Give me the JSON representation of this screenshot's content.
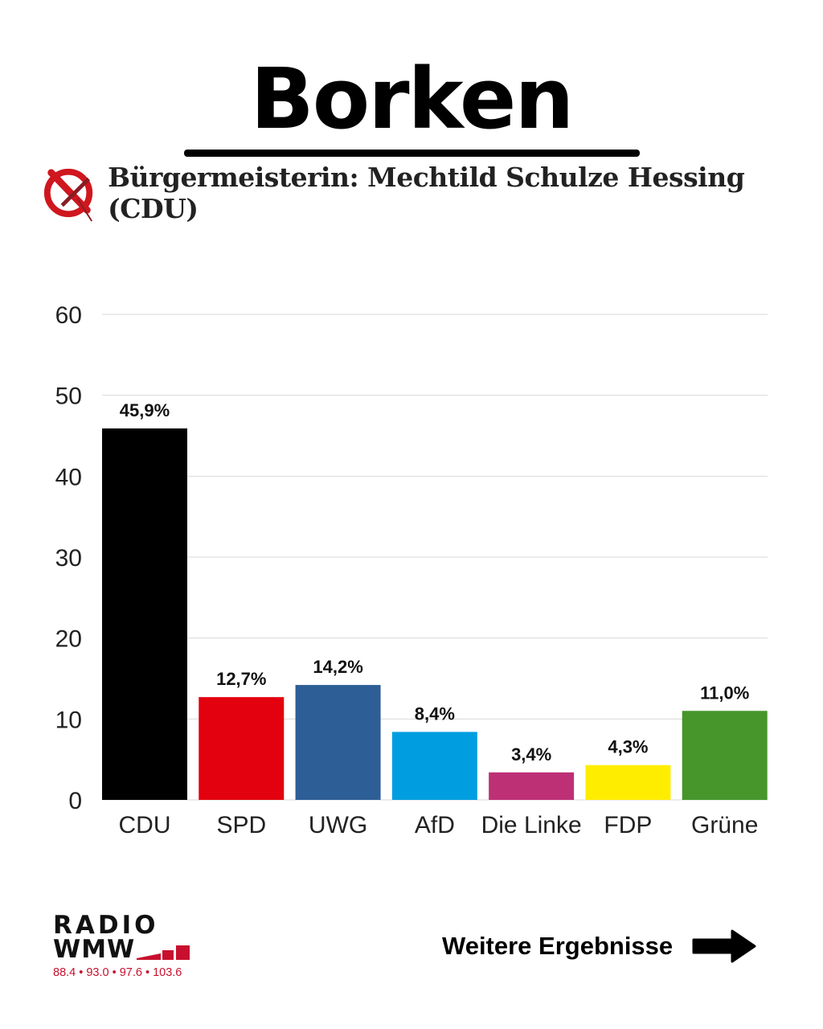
{
  "header": {
    "title": "Borken",
    "subtitle": "Bürgermeisterin: Mechtild Schulze Hessing (CDU)",
    "icon": "ballot-cross-icon"
  },
  "chart_data": {
    "type": "bar",
    "title": "",
    "xlabel": "",
    "ylabel": "",
    "ylim": [
      0,
      60
    ],
    "yticks": [
      "0",
      "10",
      "20",
      "30",
      "40",
      "50",
      "60"
    ],
    "grid": true,
    "categories": [
      "CDU",
      "SPD",
      "UWG",
      "AfD",
      "Die Linke",
      "FDP",
      "Grüne"
    ],
    "values": [
      45.9,
      12.7,
      14.2,
      8.4,
      3.4,
      4.3,
      11.0
    ],
    "data_labels": [
      "45,9%",
      "12,7%",
      "14,2%",
      "8,4%",
      "3,4%",
      "4,3%",
      "11,0%"
    ],
    "colors": [
      "#000000",
      "#e3000f",
      "#2e5e96",
      "#009ee0",
      "#be3075",
      "#ffed00",
      "#46962b"
    ]
  },
  "footer": {
    "logo_line1": "RADIO",
    "logo_line2": "WMW",
    "frequencies": "88.4 • 93.0 • 97.6 • 103.6",
    "more_label": "Weitere Ergebnisse",
    "accent": "#c8102e"
  }
}
